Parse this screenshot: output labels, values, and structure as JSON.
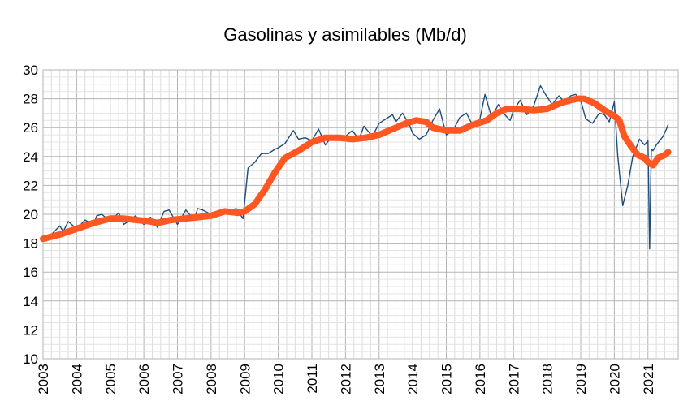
{
  "chart_data": {
    "type": "line",
    "title": "Gasolinas y asimilables (Mb/d)",
    "xlabel": "",
    "ylabel": "",
    "xlim": [
      2003,
      2021.9
    ],
    "ylim": [
      10,
      30
    ],
    "yticks": [
      10,
      12,
      14,
      16,
      18,
      20,
      22,
      24,
      26,
      28,
      30
    ],
    "xticks": [
      "2003",
      "2004",
      "2005",
      "2006",
      "2007",
      "2008",
      "2009",
      "2010",
      "2011",
      "2012",
      "2013",
      "2014",
      "2015",
      "2016",
      "2017",
      "2018",
      "2019",
      "2020",
      "2021"
    ],
    "grid": true,
    "legend": "none",
    "series": [
      {
        "color": "#1f4e79",
        "x": [
          2003.0,
          2003.25,
          2003.5,
          2003.6,
          2003.75,
          2004.0,
          2004.25,
          2004.5,
          2004.6,
          2004.75,
          2005.0,
          2005.25,
          2005.4,
          2005.6,
          2005.75,
          2006.0,
          2006.2,
          2006.4,
          2006.6,
          2006.75,
          2007.0,
          2007.25,
          2007.5,
          2007.6,
          2007.75,
          2008.0,
          2008.25,
          2008.5,
          2008.6,
          2008.75,
          2008.95,
          2009.1,
          2009.3,
          2009.5,
          2009.7,
          2009.9,
          2010.0,
          2010.2,
          2010.45,
          2010.6,
          2010.8,
          2011.0,
          2011.2,
          2011.4,
          2011.6,
          2011.8,
          2012.0,
          2012.2,
          2012.4,
          2012.55,
          2012.8,
          2013.0,
          2013.2,
          2013.4,
          2013.5,
          2013.7,
          2013.9,
          2014.0,
          2014.2,
          2014.4,
          2014.6,
          2014.8,
          2015.0,
          2015.2,
          2015.4,
          2015.6,
          2015.8,
          2016.0,
          2016.15,
          2016.35,
          2016.55,
          2016.7,
          2016.9,
          2017.0,
          2017.2,
          2017.4,
          2017.6,
          2017.8,
          2017.95,
          2018.15,
          2018.35,
          2018.5,
          2018.7,
          2018.85,
          2019.0,
          2019.15,
          2019.35,
          2019.55,
          2019.7,
          2019.85,
          2020.0,
          2020.1,
          2020.25,
          2020.4,
          2020.55,
          2020.75,
          2020.9,
          2021.0,
          2021.05,
          2021.1,
          2021.15,
          2021.25,
          2021.45,
          2021.55,
          2021.6
        ],
        "values": [
          18.3,
          18.6,
          19.2,
          18.8,
          19.5,
          19.0,
          19.6,
          19.3,
          19.9,
          20.0,
          19.5,
          20.1,
          19.3,
          19.6,
          19.9,
          19.3,
          19.8,
          19.1,
          20.2,
          20.3,
          19.3,
          20.3,
          19.6,
          20.4,
          20.3,
          20.0,
          20.2,
          20.1,
          20.3,
          20.4,
          19.7,
          23.2,
          23.6,
          24.2,
          24.2,
          24.5,
          24.6,
          24.9,
          25.8,
          25.2,
          25.3,
          25.1,
          25.9,
          24.8,
          25.4,
          25.3,
          25.4,
          25.8,
          25.2,
          26.1,
          25.4,
          26.3,
          26.6,
          26.9,
          26.4,
          27.0,
          26.2,
          25.6,
          25.2,
          25.5,
          26.5,
          27.3,
          25.5,
          25.8,
          26.7,
          27.0,
          26.1,
          26.6,
          28.3,
          26.7,
          27.6,
          27.0,
          26.5,
          27.2,
          27.9,
          26.9,
          27.5,
          28.9,
          28.3,
          27.6,
          28.2,
          27.8,
          28.2,
          28.3,
          27.9,
          26.6,
          26.3,
          27.0,
          26.9,
          26.4,
          27.8,
          24.1,
          20.6,
          22.0,
          24.0,
          25.2,
          24.8,
          25.1,
          17.6,
          24.5,
          24.4,
          24.8,
          25.4,
          25.9,
          26.2
        ]
      },
      {
        "color": "#ff5722",
        "x": [
          2003.0,
          2003.5,
          2004.0,
          2004.5,
          2005.0,
          2005.4,
          2005.8,
          2006.2,
          2006.4,
          2006.8,
          2007.2,
          2007.6,
          2008.0,
          2008.4,
          2008.8,
          2009.0,
          2009.3,
          2009.6,
          2009.9,
          2010.2,
          2010.6,
          2011.0,
          2011.4,
          2011.8,
          2012.2,
          2012.6,
          2013.0,
          2013.4,
          2013.8,
          2014.1,
          2014.4,
          2014.6,
          2015.0,
          2015.4,
          2015.8,
          2016.2,
          2016.5,
          2016.8,
          2017.2,
          2017.6,
          2018.0,
          2018.4,
          2018.7,
          2018.9,
          2019.1,
          2019.4,
          2019.7,
          2020.0,
          2020.15,
          2020.3,
          2020.5,
          2020.7,
          2020.9,
          2021.0,
          2021.15,
          2021.3,
          2021.5,
          2021.6
        ],
        "values": [
          18.3,
          18.6,
          19.0,
          19.4,
          19.7,
          19.7,
          19.6,
          19.5,
          19.4,
          19.6,
          19.7,
          19.8,
          19.9,
          20.2,
          20.1,
          20.2,
          20.7,
          21.7,
          22.9,
          23.9,
          24.4,
          25.0,
          25.3,
          25.3,
          25.2,
          25.3,
          25.5,
          25.9,
          26.3,
          26.5,
          26.4,
          26.0,
          25.8,
          25.8,
          26.2,
          26.5,
          27.0,
          27.3,
          27.3,
          27.2,
          27.3,
          27.7,
          27.9,
          28.0,
          28.0,
          27.7,
          27.2,
          26.8,
          26.5,
          25.4,
          24.7,
          24.1,
          23.9,
          23.6,
          23.4,
          23.9,
          24.1,
          24.3
        ]
      }
    ]
  }
}
